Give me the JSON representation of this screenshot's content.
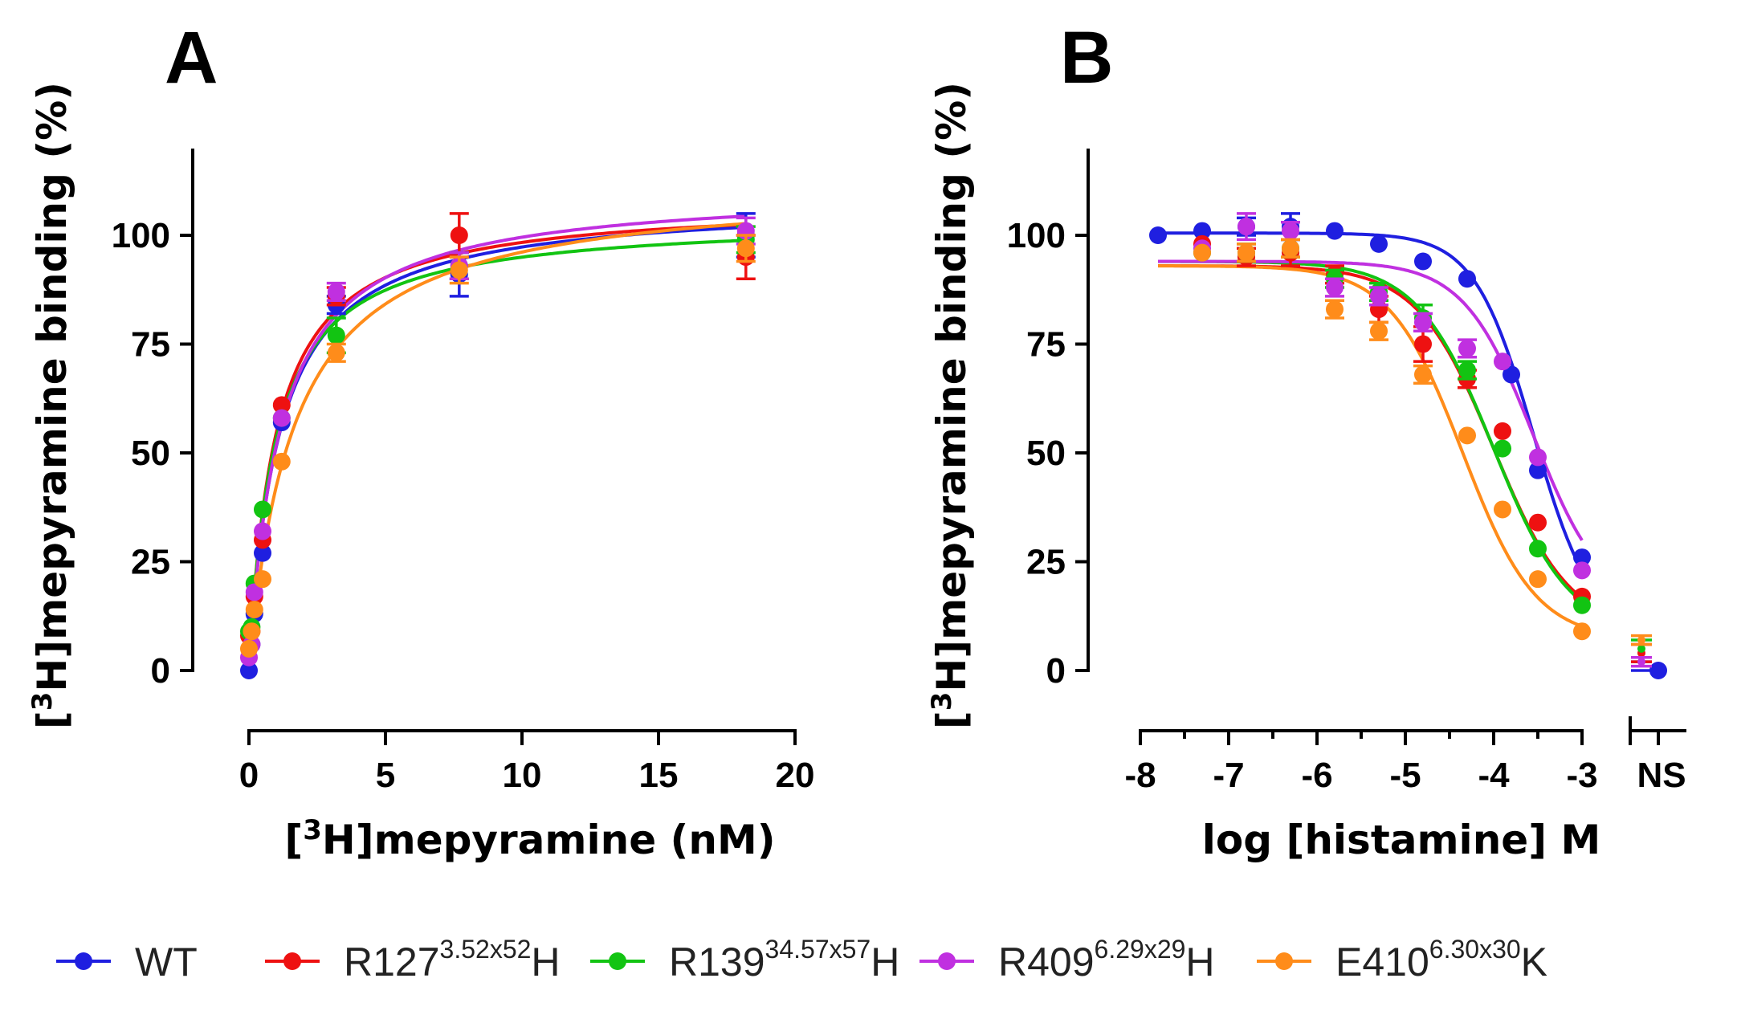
{
  "chart_data": [
    {
      "type": "scatter",
      "panel": "A",
      "title": "",
      "xlabel": {
        "pre": "[",
        "sup": "3",
        "post": "H]mepyramine (nM)"
      },
      "ylabel": {
        "pre": "[",
        "sup": "3",
        "post": "H]mepyramine binding (%)"
      },
      "xlim": [
        0,
        20
      ],
      "ylim": [
        0,
        115
      ],
      "xticks": [
        0,
        5,
        10,
        15,
        20
      ],
      "yticks": [
        0,
        25,
        50,
        75,
        100
      ],
      "fit": "one-site saturation",
      "series": [
        {
          "key": "WT",
          "color": "#1f1fe0",
          "x": [
            0.0,
            0.1,
            0.2,
            0.5,
            1.2,
            3.2,
            7.7,
            18.2
          ],
          "y": [
            0,
            6,
            13,
            27,
            57,
            84,
            91,
            100
          ],
          "err": [
            0,
            0,
            0,
            0,
            0,
            2,
            5,
            5
          ],
          "fit_bmax": 108,
          "fit_kd": 1.1
        },
        {
          "key": "R127",
          "color": "#ee1111",
          "x": [
            0.0,
            0.1,
            0.2,
            0.5,
            1.2,
            3.2,
            7.7,
            18.2
          ],
          "y": [
            8,
            9,
            17,
            30,
            61,
            86,
            100,
            95
          ],
          "err": [
            0,
            0,
            0,
            0,
            0,
            2,
            5,
            5
          ],
          "fit_bmax": 108,
          "fit_kd": 0.98
        },
        {
          "key": "R139",
          "color": "#12c412",
          "x": [
            0.0,
            0.1,
            0.2,
            0.5,
            1.2,
            3.2,
            7.7,
            18.2
          ],
          "y": [
            9,
            10,
            20,
            37,
            58,
            77,
            93,
            99
          ],
          "err": [
            0,
            0,
            0,
            0,
            0,
            4,
            3,
            3
          ],
          "fit_bmax": 104,
          "fit_kd": 0.95
        },
        {
          "key": "R409",
          "color": "#c030e0",
          "x": [
            0.0,
            0.1,
            0.2,
            0.5,
            1.2,
            3.2,
            7.7,
            18.2
          ],
          "y": [
            3,
            6,
            18,
            32,
            58,
            87,
            93,
            101
          ],
          "err": [
            0,
            0,
            0,
            0,
            0,
            2,
            3,
            3
          ],
          "fit_bmax": 111,
          "fit_kd": 1.15
        },
        {
          "key": "E410",
          "color": "#ff8c1a",
          "x": [
            0.0,
            0.1,
            0.2,
            0.5,
            1.2,
            3.2,
            7.7,
            18.2
          ],
          "y": [
            5,
            9,
            14,
            21,
            48,
            73,
            92,
            97
          ],
          "err": [
            0,
            0,
            0,
            0,
            0,
            2,
            3,
            3
          ],
          "fit_bmax": 112,
          "fit_kd": 1.65
        }
      ]
    },
    {
      "type": "scatter",
      "panel": "B",
      "title": "",
      "xlabel": {
        "text": "log [histamine] M"
      },
      "ylabel": {
        "pre": "[",
        "sup": "3",
        "post": "H]mepyramine binding (%)"
      },
      "xlim": [
        -8,
        -3
      ],
      "ylim": [
        0,
        115
      ],
      "xticks": [
        -8,
        -7,
        -6,
        -5,
        -4,
        -3
      ],
      "extra_tick": "NS",
      "yticks": [
        0,
        25,
        50,
        75,
        100
      ],
      "fit": "sigmoidal dose-response",
      "series": [
        {
          "key": "WT",
          "color": "#1f1fe0",
          "x": [
            -7.8,
            -7.3,
            -6.8,
            -6.3,
            -5.8,
            -5.3,
            -4.8,
            -4.3,
            -3.8,
            -3.5,
            -3.0
          ],
          "y": [
            100,
            101,
            102,
            102,
            101,
            98,
            94,
            90,
            68,
            46,
            26
          ],
          "err": [
            0,
            0,
            2,
            3,
            0,
            0,
            0,
            0,
            0,
            0,
            0
          ],
          "fit_top": 100.5,
          "fit_bottom": 8,
          "fit_logic50": -3.55,
          "fit_hill": 1.3,
          "ns": 0,
          "ns_err": 2
        },
        {
          "key": "R127",
          "color": "#ee1111",
          "x": [
            -7.3,
            -6.8,
            -6.3,
            -5.8,
            -5.3,
            -4.8,
            -4.3,
            -3.9,
            -3.5,
            -3.0
          ],
          "y": [
            98,
            95,
            96,
            91,
            83,
            75,
            67,
            55,
            34,
            17
          ],
          "err": [
            0,
            2,
            3,
            2,
            3,
            4,
            2,
            0,
            0,
            0
          ],
          "fit_top": 93,
          "fit_bottom": 9,
          "fit_logic50": -4.0,
          "fit_hill": 1.0,
          "ns": 4,
          "ns_err": 2
        },
        {
          "key": "R139",
          "color": "#12c412",
          "x": [
            -7.3,
            -6.8,
            -6.3,
            -5.8,
            -5.3,
            -4.8,
            -4.3,
            -3.9,
            -3.5,
            -3.0
          ],
          "y": [
            96,
            96,
            97,
            90,
            87,
            81,
            69,
            51,
            28,
            15
          ],
          "err": [
            0,
            2,
            2,
            2,
            2,
            3,
            2,
            0,
            0,
            0
          ],
          "fit_top": 94,
          "fit_bottom": 8,
          "fit_logic50": -4.0,
          "fit_hill": 1.0,
          "ns": 5,
          "ns_err": 2
        },
        {
          "key": "R409",
          "color": "#c030e0",
          "x": [
            -7.3,
            -6.8,
            -6.3,
            -5.8,
            -5.3,
            -4.8,
            -4.3,
            -3.9,
            -3.5,
            -3.0
          ],
          "y": [
            97,
            102,
            101,
            88,
            86,
            80,
            74,
            71,
            49,
            23
          ],
          "err": [
            0,
            3,
            2,
            2,
            2,
            2,
            2,
            0,
            0,
            0
          ],
          "fit_top": 94,
          "fit_bottom": 14,
          "fit_logic50": -3.55,
          "fit_hill": 1.1,
          "ns": 2,
          "ns_err": 1
        },
        {
          "key": "E410",
          "color": "#ff8c1a",
          "x": [
            -7.3,
            -6.8,
            -6.3,
            -5.8,
            -5.3,
            -4.8,
            -4.3,
            -3.9,
            -3.5,
            -3.0
          ],
          "y": [
            96,
            96,
            97,
            83,
            78,
            68,
            54,
            37,
            21,
            9
          ],
          "err": [
            0,
            2,
            2,
            2,
            2,
            2,
            0,
            0,
            0,
            0
          ],
          "fit_top": 93,
          "fit_bottom": 7,
          "fit_logic50": -4.35,
          "fit_hill": 1.05,
          "ns": 7,
          "ns_err": 1
        }
      ]
    }
  ],
  "legend": [
    {
      "key": "WT",
      "color": "#1f1fe0",
      "label": "WT",
      "sup": "",
      "suffix": ""
    },
    {
      "key": "R127",
      "color": "#ee1111",
      "label": "R127",
      "sup": "3.52x52",
      "suffix": "H"
    },
    {
      "key": "R139",
      "color": "#12c412",
      "label": "R139",
      "sup": "34.57x57",
      "suffix": "H"
    },
    {
      "key": "R409",
      "color": "#c030e0",
      "label": "R409",
      "sup": "6.29x29",
      "suffix": "H"
    },
    {
      "key": "E410",
      "color": "#ff8c1a",
      "label": "E410",
      "sup": "6.30x30",
      "suffix": "K"
    }
  ]
}
